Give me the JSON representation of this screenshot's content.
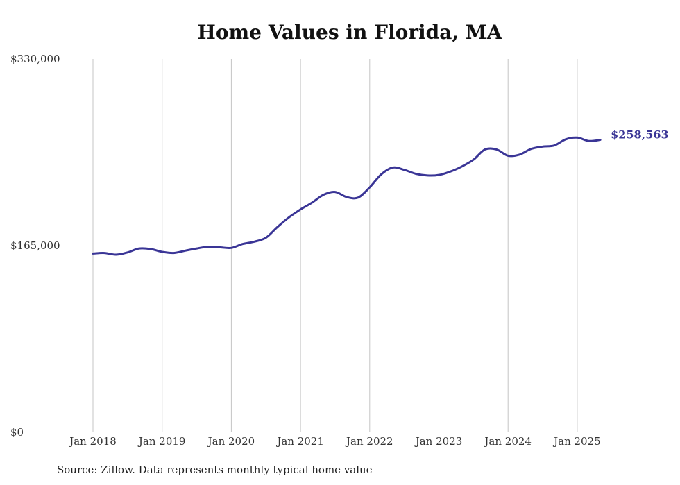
{
  "chart_data": {
    "type": "line",
    "title": "Home Values in Florida, MA",
    "xlabel": "",
    "ylabel": "",
    "ylim": [
      0,
      330000
    ],
    "y_ticks": [
      {
        "value": 0,
        "label": "$0"
      },
      {
        "value": 165000,
        "label": "$165,000"
      },
      {
        "value": 330000,
        "label": "$330,000"
      }
    ],
    "x_ticks": [
      {
        "value": 2018,
        "label": "Jan 2018"
      },
      {
        "value": 2019,
        "label": "Jan 2019"
      },
      {
        "value": 2020,
        "label": "Jan 2020"
      },
      {
        "value": 2021,
        "label": "Jan 2021"
      },
      {
        "value": 2022,
        "label": "Jan 2022"
      },
      {
        "value": 2023,
        "label": "Jan 2023"
      },
      {
        "value": 2024,
        "label": "Jan 2024"
      },
      {
        "value": 2025,
        "label": "Jan 2025"
      }
    ],
    "grid": "vertical",
    "series": [
      {
        "color": "#3a3596",
        "end_label": "$258,563",
        "x": [
          "2018-01",
          "2018-03",
          "2018-05",
          "2018-07",
          "2018-09",
          "2018-11",
          "2019-01",
          "2019-03",
          "2019-05",
          "2019-07",
          "2019-09",
          "2019-11",
          "2020-01",
          "2020-03",
          "2020-05",
          "2020-07",
          "2020-09",
          "2020-11",
          "2021-01",
          "2021-03",
          "2021-05",
          "2021-07",
          "2021-09",
          "2021-11",
          "2022-01",
          "2022-03",
          "2022-05",
          "2022-07",
          "2022-09",
          "2022-11",
          "2023-01",
          "2023-03",
          "2023-05",
          "2023-07",
          "2023-09",
          "2023-11",
          "2024-01",
          "2024-03",
          "2024-05",
          "2024-07",
          "2024-09",
          "2024-11",
          "2025-01",
          "2025-03",
          "2025-05"
        ],
        "values": [
          158000,
          158500,
          157000,
          159000,
          162500,
          162000,
          159500,
          158500,
          160500,
          162500,
          164000,
          163500,
          163000,
          166500,
          168500,
          172000,
          181500,
          190000,
          197000,
          203000,
          210000,
          212500,
          208000,
          207500,
          216500,
          228000,
          234000,
          232000,
          228500,
          227000,
          227500,
          230500,
          235000,
          241000,
          250000,
          250000,
          244500,
          245500,
          250500,
          252500,
          253500,
          259000,
          260500,
          257500,
          258563
        ]
      }
    ]
  },
  "source_text": "Source: Zillow. Data represents monthly typical home value"
}
